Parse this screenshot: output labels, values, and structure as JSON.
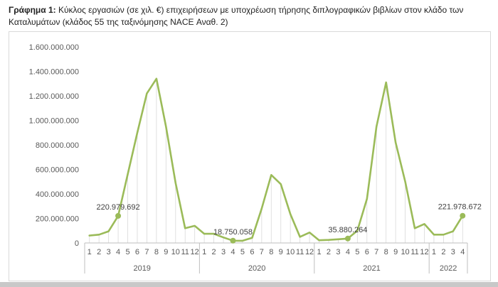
{
  "caption": {
    "label": "Γράφημα 1:",
    "text": " Κύκλος εργασιών (σε χιλ. €) επιχειρήσεων με υποχρέωση τήρησης διπλογραφικών βιβλίων στον κλάδο των Καταλυμάτων (κλάδος 55 της ταξινόμησης NACE Αναθ. 2)"
  },
  "chart_data": {
    "type": "line",
    "title": "",
    "xlabel": "",
    "ylabel": "",
    "ylim": [
      0,
      1600000000
    ],
    "yticks": [
      "0",
      "200.000.000",
      "400.000.000",
      "600.000.000",
      "800.000.000",
      "1.000.000.000",
      "1.200.000.000",
      "1.400.000.000",
      "1.600.000.000"
    ],
    "grid": "vertical",
    "line_color": "#9bbb59",
    "groups": [
      {
        "label": "2019",
        "months": [
          "1",
          "2",
          "3",
          "4",
          "5",
          "6",
          "7",
          "8",
          "9",
          "10",
          "11",
          "12"
        ]
      },
      {
        "label": "2020",
        "months": [
          "1",
          "2",
          "3",
          "4",
          "5",
          "6",
          "7",
          "8",
          "9",
          "10",
          "11",
          "12"
        ]
      },
      {
        "label": "2021",
        "months": [
          "1",
          "2",
          "3",
          "4",
          "5",
          "6",
          "7",
          "8",
          "9",
          "10",
          "11",
          "12"
        ]
      },
      {
        "label": "2022",
        "months": [
          "1",
          "2",
          "3",
          "4"
        ]
      }
    ],
    "values": [
      60000000,
      68000000,
      95000000,
      220979692,
      560000000,
      900000000,
      1220000000,
      1340000000,
      950000000,
      490000000,
      120000000,
      140000000,
      75000000,
      75000000,
      45000000,
      18750058,
      18000000,
      42000000,
      280000000,
      555000000,
      480000000,
      235000000,
      50000000,
      85000000,
      22000000,
      25000000,
      30000000,
      35880264,
      100000000,
      360000000,
      950000000,
      1310000000,
      820000000,
      500000000,
      120000000,
      155000000,
      68000000,
      68000000,
      95000000,
      221978672
    ],
    "annotations": [
      {
        "index": 3,
        "text": "220.979.692"
      },
      {
        "index": 15,
        "text": "18.750.058"
      },
      {
        "index": 27,
        "text": "35.880.264"
      },
      {
        "index": 39,
        "text": "221.978.672"
      }
    ]
  }
}
